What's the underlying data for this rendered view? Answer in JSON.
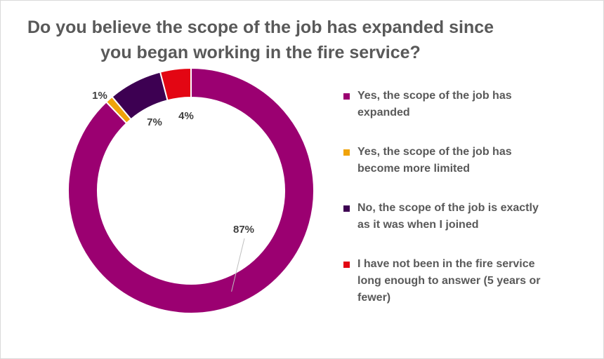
{
  "chart_data": {
    "type": "pie",
    "variant": "donut",
    "title": "Do you believe the scope of the job has expanded since you began working in the fire service?",
    "categories": [
      "Yes, the scope of the job has expanded",
      "Yes, the scope of the job has become more limited",
      "No, the scope of the job is exactly as it was when I joined",
      "I have not been in the fire service long enough to answer (5 years or fewer)"
    ],
    "values": [
      87,
      1,
      7,
      4
    ],
    "data_labels": [
      "87%",
      "1%",
      "7%",
      "4%"
    ],
    "colors": [
      "#9B0071",
      "#F0A30A",
      "#3D0052",
      "#E30613"
    ],
    "legend": {
      "position": "right",
      "items": [
        "Yes, the scope of the job has expanded",
        "Yes, the scope of the job has become more limited",
        "No, the scope of the job is exactly as it was when I joined",
        "I have not been in the fire service long enough to answer (5 years or fewer)"
      ]
    }
  }
}
